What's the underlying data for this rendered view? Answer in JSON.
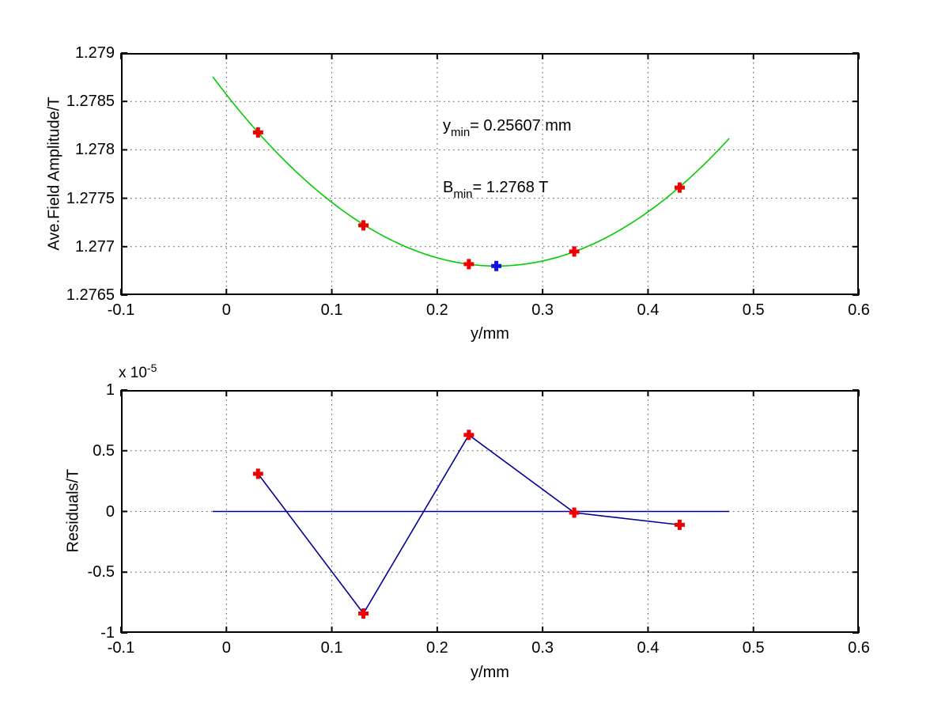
{
  "figure": {
    "background": "#ffffff"
  },
  "colors": {
    "data_marker": "#ee0000",
    "minimum_marker": "#1212e0",
    "fit_curve": "#00cc00",
    "residual_line": "#000099",
    "axis": "#000000",
    "grid": "#4d4d4d"
  },
  "chart_data": [
    {
      "type": "scatter",
      "title": "",
      "xlabel": "y/mm",
      "ylabel": "Ave.Field Amplitude/T",
      "xlim": [
        -0.1,
        0.6
      ],
      "ylim": [
        1.2765,
        1.279
      ],
      "grid": true,
      "xtick_values": [
        -0.1,
        0,
        0.1,
        0.2,
        0.3,
        0.4,
        0.5,
        0.6
      ],
      "xticks": [
        "-0.1",
        "0",
        "0.1",
        "0.2",
        "0.3",
        "0.4",
        "0.5",
        "0.6"
      ],
      "ytick_values": [
        1.2765,
        1.277,
        1.2775,
        1.278,
        1.2785,
        1.279
      ],
      "yticks": [
        "1.2765",
        "1.277",
        "1.2775",
        "1.278",
        "1.2785",
        "1.279"
      ],
      "series": [
        {
          "name": "parabola-fit",
          "type": "line",
          "color": "#00cc00",
          "fit": {
            "a": 0.027,
            "x0": 0.25607,
            "y0": 1.2768,
            "x_start": -0.013,
            "x_end": 0.477
          }
        },
        {
          "name": "measured-points",
          "type": "scatter",
          "marker": "plus",
          "color": "#ee0000",
          "x": [
            0.03,
            0.13,
            0.23,
            0.33,
            0.43
          ],
          "y": [
            1.27818,
            1.27722,
            1.27682,
            1.27695,
            1.27761
          ]
        },
        {
          "name": "minimum-point",
          "type": "scatter",
          "marker": "plus",
          "color": "#1212e0",
          "x": [
            0.25607
          ],
          "y": [
            1.2768
          ]
        }
      ],
      "annotations": [
        {
          "base": "y",
          "sub": "min",
          "rest": "= 0.25607 mm"
        },
        {
          "base": "B",
          "sub": "min",
          "rest": "= 1.2768 T"
        }
      ]
    },
    {
      "type": "line",
      "title": "",
      "xlabel": "y/mm",
      "ylabel": "Residuals/T",
      "scale_base": "x 10",
      "scale_exp": "-5",
      "y_units": "1e-5 T",
      "xlim": [
        -0.1,
        0.6
      ],
      "ylim": [
        -1,
        1
      ],
      "grid": true,
      "xtick_values": [
        -0.1,
        0,
        0.1,
        0.2,
        0.3,
        0.4,
        0.5,
        0.6
      ],
      "xticks": [
        "-0.1",
        "0",
        "0.1",
        "0.2",
        "0.3",
        "0.4",
        "0.5",
        "0.6"
      ],
      "ytick_values": [
        -1,
        -0.5,
        0,
        0.5,
        1
      ],
      "yticks": [
        "-1",
        "-0.5",
        "0",
        "0.5",
        "1"
      ],
      "series": [
        {
          "name": "zero-line",
          "type": "line",
          "color": "#000099",
          "x": [
            -0.013,
            0.477
          ],
          "y": [
            0,
            0
          ]
        },
        {
          "name": "residuals",
          "type": "line-scatter",
          "marker": "plus",
          "line_color": "#000099",
          "color": "#ee0000",
          "x": [
            0.03,
            0.13,
            0.23,
            0.33,
            0.43
          ],
          "y": [
            0.31,
            -0.84,
            0.63,
            -0.01,
            -0.11
          ]
        }
      ]
    }
  ]
}
